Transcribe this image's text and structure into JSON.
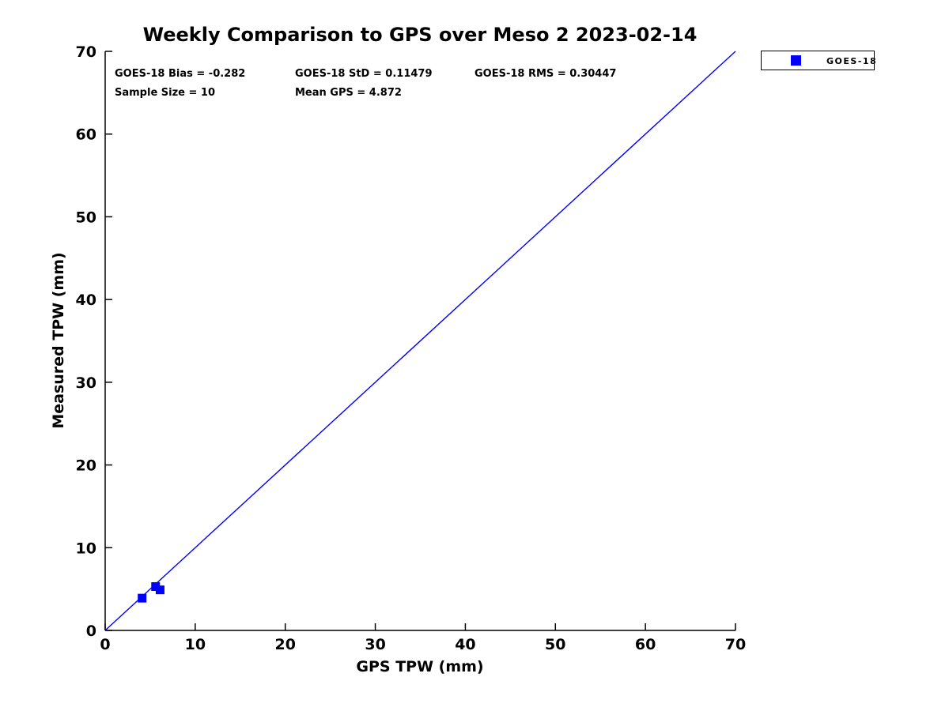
{
  "title": "Weekly Comparison to GPS over Meso 2 2023-02-14",
  "stats": {
    "bias": "GOES-18 Bias = -0.282",
    "std": "GOES-18 StD = 0.11479",
    "rms": "GOES-18 RMS = 0.30447",
    "sample_size": "Sample Size = 10",
    "mean_gps": "Mean GPS = 4.872"
  },
  "axes": {
    "xlabel": "GPS TPW (mm)",
    "ylabel": "Measured TPW (mm)"
  },
  "legend": {
    "position": "outside-top-right",
    "entries": [
      {
        "label": "GOES-18",
        "marker": "square",
        "color": "#0000ff"
      }
    ]
  },
  "colors": {
    "accent": "#0000ff",
    "axis": "#000000",
    "background": "#ffffff",
    "text": "#000000"
  },
  "chart_data": {
    "type": "scatter",
    "title": "Weekly Comparison to GPS over Meso 2 2023-02-14",
    "xlabel": "GPS TPW (mm)",
    "ylabel": "Measured TPW (mm)",
    "xlim": [
      0,
      70
    ],
    "ylim": [
      0,
      70
    ],
    "xticks": [
      0,
      10,
      20,
      30,
      40,
      50,
      60,
      70
    ],
    "yticks": [
      0,
      10,
      20,
      30,
      40,
      50,
      60,
      70
    ],
    "grid": false,
    "legend_position": "outside top-right",
    "series": [
      {
        "name": "GOES-18",
        "type": "scatter",
        "marker": "square",
        "marker_size_px": 11,
        "color": "#0000ff",
        "points": [
          [
            4.1,
            3.9
          ],
          [
            5.6,
            5.3
          ],
          [
            6.1,
            4.9
          ]
        ]
      }
    ],
    "reference_line": {
      "from": [
        0,
        0
      ],
      "to": [
        70,
        70
      ],
      "color": "#0000ff"
    },
    "annotations": [
      "GOES-18 Bias = -0.282",
      "GOES-18 StD = 0.11479",
      "GOES-18 RMS = 0.30447",
      "Sample Size = 10",
      "Mean GPS = 4.872"
    ]
  }
}
